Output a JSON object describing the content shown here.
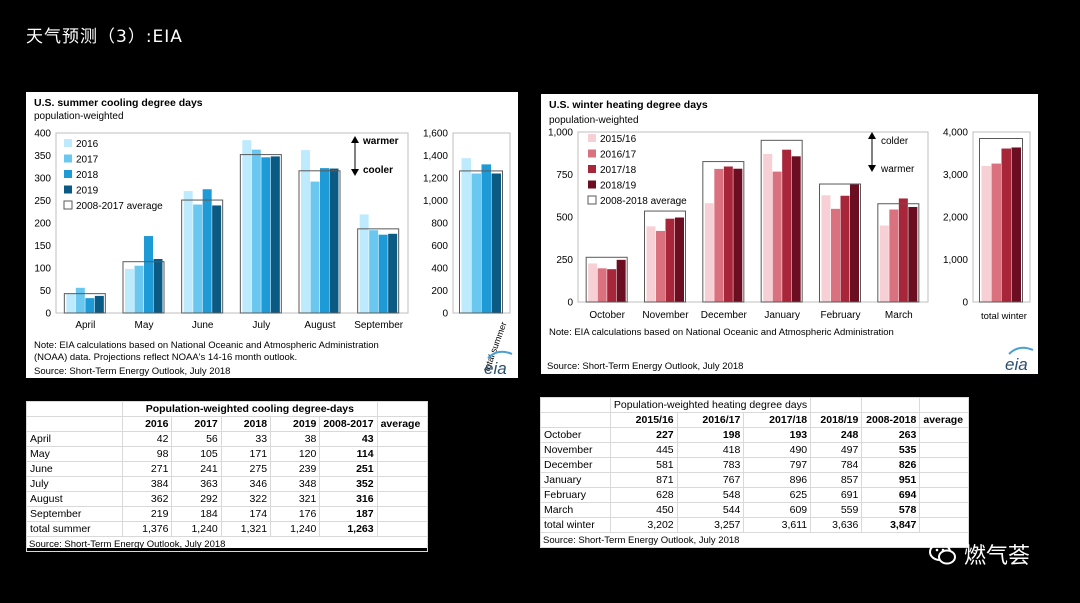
{
  "slide_title": "天气预测（3）:EIA",
  "watermark": "燃气荟",
  "cooling_chart": {
    "title": "U.S. summer cooling degree days",
    "subtitle": "population-weighted",
    "y_ticks": [
      "0",
      "50",
      "100",
      "150",
      "200",
      "250",
      "300",
      "350",
      "400"
    ],
    "y2_ticks": [
      "0",
      "200",
      "400",
      "600",
      "800",
      "1,000",
      "1,200",
      "1,400",
      "1,600"
    ],
    "legend": [
      "2016",
      "2017",
      "2018",
      "2019",
      "2008-2017 average"
    ],
    "warmer_label": "warmer",
    "cooler_label": "cooler",
    "note": "Note: EIA calculations based on National Oceanic and Atmospheric Administration (NOAA) data. Projections reflect NOAA's 14-16 month outlook.",
    "note_line1": "Note: EIA calculations based on National Oceanic and Atmospheric Administration",
    "note_line2": "(NOAA) data. Projections reflect NOAA's 14-16 month outlook.",
    "source": "Source: Short-Term Energy Outlook, July 2018",
    "total_label": "total summer",
    "logo": "eia",
    "colors": [
      "#bdeafd",
      "#6ac8f0",
      "#1e9ad6",
      "#0b5a84"
    ]
  },
  "heating_chart": {
    "title": "U.S. winter heating degree days",
    "subtitle": "population-weighted",
    "y_ticks": [
      "0",
      "250",
      "500",
      "750",
      "1,000"
    ],
    "y2_ticks": [
      "0",
      "1,000",
      "2,000",
      "3,000",
      "4,000"
    ],
    "legend": [
      "2015/16",
      "2016/17",
      "2017/18",
      "2018/19",
      "2008-2018 average"
    ],
    "colder_label": "colder",
    "warmer_label": "warmer",
    "note": "Note: EIA calculations based on National Oceanic and Atmospheric Administration",
    "source": "Source: Short-Term Energy Outlook, July 2018",
    "total_label": "total winter",
    "logo": "eia",
    "colors": [
      "#f6d0d5",
      "#d9717f",
      "#a8263a",
      "#6b0e21"
    ]
  },
  "cooling_table": {
    "title": "Population-weighted cooling degree-days",
    "headers": [
      "2016",
      "2017",
      "2018",
      "2019",
      "2008-2017",
      "average"
    ],
    "rows": [
      {
        "label": "April",
        "v": [
          "42",
          "56",
          "33",
          "38",
          "43"
        ]
      },
      {
        "label": "May",
        "v": [
          "98",
          "105",
          "171",
          "120",
          "114"
        ]
      },
      {
        "label": "June",
        "v": [
          "271",
          "241",
          "275",
          "239",
          "251"
        ]
      },
      {
        "label": "July",
        "v": [
          "384",
          "363",
          "346",
          "348",
          "352"
        ]
      },
      {
        "label": "August",
        "v": [
          "362",
          "292",
          "322",
          "321",
          "316"
        ]
      },
      {
        "label": "September",
        "v": [
          "219",
          "184",
          "174",
          "176",
          "187"
        ]
      },
      {
        "label": "total summer",
        "v": [
          "1,376",
          "1,240",
          "1,321",
          "1,240",
          "1,263"
        ]
      }
    ],
    "source": "Source: Short-Term Energy Outlook, July 2018"
  },
  "heating_table": {
    "title": "Population-weighted heating degree days",
    "headers": [
      "2015/16",
      "2016/17",
      "2017/18",
      "2018/19",
      "2008-2018",
      "average"
    ],
    "rows": [
      {
        "label": "October",
        "v": [
          "227",
          "198",
          "193",
          "248",
          "263"
        ]
      },
      {
        "label": "November",
        "v": [
          "445",
          "418",
          "490",
          "497",
          "535"
        ]
      },
      {
        "label": "December",
        "v": [
          "581",
          "783",
          "797",
          "784",
          "826"
        ]
      },
      {
        "label": "January",
        "v": [
          "871",
          "767",
          "896",
          "857",
          "951"
        ]
      },
      {
        "label": "February",
        "v": [
          "628",
          "548",
          "625",
          "691",
          "694"
        ]
      },
      {
        "label": "March",
        "v": [
          "450",
          "544",
          "609",
          "559",
          "578"
        ]
      },
      {
        "label": "total winter",
        "v": [
          "3,202",
          "3,257",
          "3,611",
          "3,636",
          "3,847"
        ]
      }
    ],
    "source": "Source: Short-Term Energy Outlook, July 2018"
  },
  "chart_data": [
    {
      "type": "bar",
      "title": "U.S. summer cooling degree days",
      "ylabel": "population-weighted",
      "categories": [
        "April",
        "May",
        "June",
        "July",
        "August",
        "September"
      ],
      "series": [
        {
          "name": "2016",
          "values": [
            42,
            98,
            271,
            384,
            362,
            219
          ]
        },
        {
          "name": "2017",
          "values": [
            56,
            105,
            241,
            363,
            292,
            184
          ]
        },
        {
          "name": "2018",
          "values": [
            33,
            171,
            275,
            346,
            322,
            174
          ]
        },
        {
          "name": "2019",
          "values": [
            38,
            120,
            239,
            348,
            321,
            176
          ]
        }
      ],
      "average": {
        "name": "2008-2017 average",
        "values": [
          43,
          114,
          251,
          352,
          316,
          187
        ]
      },
      "ylim": [
        0,
        400
      ],
      "totals": {
        "label": "total summer",
        "values": [
          1376,
          1240,
          1321,
          1240
        ],
        "average": 1263,
        "ylim": [
          0,
          1600
        ]
      }
    },
    {
      "type": "bar",
      "title": "U.S. winter heating degree days",
      "ylabel": "population-weighted",
      "categories": [
        "October",
        "November",
        "December",
        "January",
        "February",
        "March"
      ],
      "series": [
        {
          "name": "2015/16",
          "values": [
            227,
            445,
            581,
            871,
            628,
            450
          ]
        },
        {
          "name": "2016/17",
          "values": [
            198,
            418,
            783,
            767,
            548,
            544
          ]
        },
        {
          "name": "2017/18",
          "values": [
            193,
            490,
            797,
            896,
            625,
            609
          ]
        },
        {
          "name": "2018/19",
          "values": [
            248,
            497,
            784,
            857,
            691,
            559
          ]
        }
      ],
      "average": {
        "name": "2008-2018 average",
        "values": [
          263,
          535,
          826,
          951,
          694,
          578
        ]
      },
      "ylim": [
        0,
        1000
      ],
      "totals": {
        "label": "total winter",
        "values": [
          3202,
          3257,
          3611,
          3636
        ],
        "average": 3847,
        "ylim": [
          0,
          4000
        ]
      }
    }
  ]
}
